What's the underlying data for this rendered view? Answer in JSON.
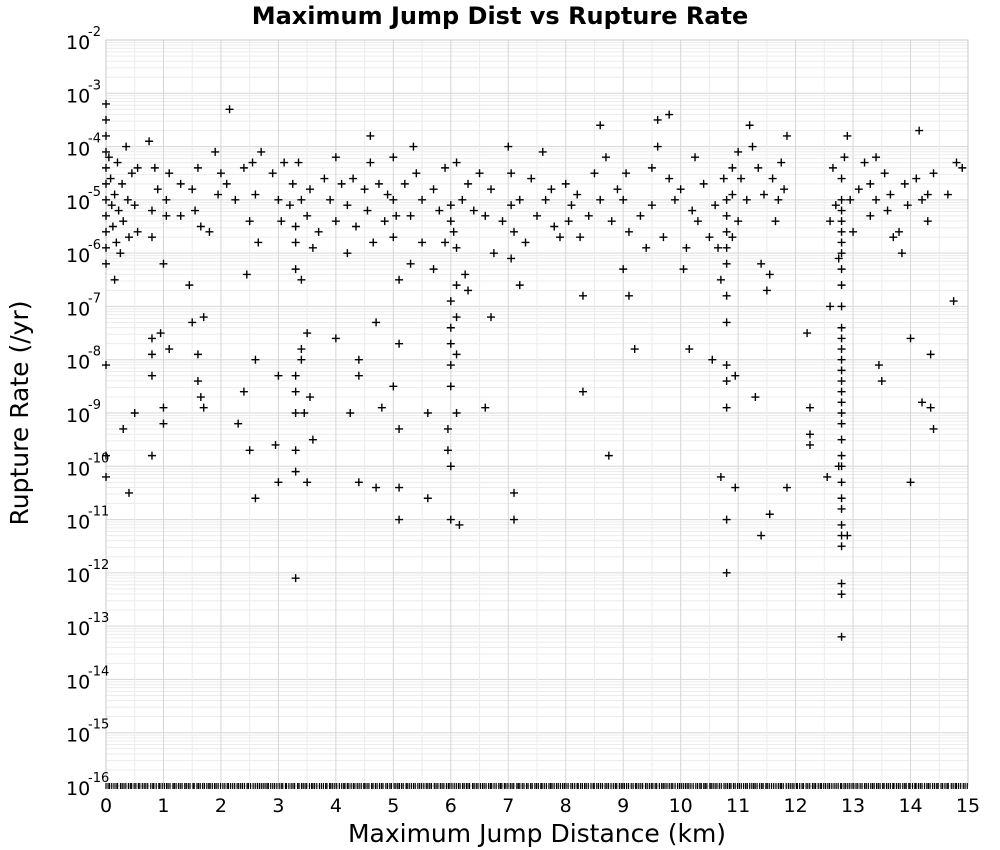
{
  "chart_data": {
    "type": "scatter",
    "title": "Maximum Jump Dist vs Rupture Rate",
    "xlabel": "Maximum Jump Distance (km)",
    "ylabel": "Rupture Rate (/yr)",
    "xlim": [
      0,
      15
    ],
    "ylim_log10": [
      -16,
      -2
    ],
    "yscale": "log",
    "x_ticks": [
      "0",
      "1",
      "2",
      "3",
      "4",
      "5",
      "6",
      "7",
      "8",
      "9",
      "10",
      "11",
      "12",
      "13",
      "14",
      "15"
    ],
    "y_tick_base": "10",
    "y_tick_exponents": [
      "-2",
      "-3",
      "-4",
      "-5",
      "-6",
      "-7",
      "-8",
      "-9",
      "-10",
      "-11",
      "-12",
      "-13",
      "-14",
      "-15",
      "-16"
    ],
    "grid": true,
    "legend": "none",
    "marker": "+",
    "marker_color": "#000000",
    "points_log10": [
      [
        0.0,
        -3.2
      ],
      [
        0.0,
        -3.5
      ],
      [
        0.0,
        -3.8
      ],
      [
        0.0,
        -4.1
      ],
      [
        0.0,
        -4.4
      ],
      [
        0.0,
        -4.7
      ],
      [
        0.0,
        -5.0
      ],
      [
        0.0,
        -5.3
      ],
      [
        0.0,
        -5.6
      ],
      [
        0.0,
        -5.9
      ],
      [
        0.0,
        -6.2
      ],
      [
        0.0,
        -8.1
      ],
      [
        0.0,
        -9.8
      ],
      [
        0.0,
        -10.2
      ],
      [
        0.05,
        -4.2
      ],
      [
        0.08,
        -4.6
      ],
      [
        0.1,
        -5.1
      ],
      [
        0.12,
        -5.5
      ],
      [
        0.15,
        -4.9
      ],
      [
        0.15,
        -6.5
      ],
      [
        0.18,
        -5.8
      ],
      [
        0.2,
        -4.3
      ],
      [
        0.22,
        -5.2
      ],
      [
        0.25,
        -6.0
      ],
      [
        0.28,
        -4.7
      ],
      [
        0.3,
        -9.3
      ],
      [
        0.3,
        -5.4
      ],
      [
        0.35,
        -4.0
      ],
      [
        0.38,
        -5.0
      ],
      [
        0.4,
        -5.7
      ],
      [
        0.4,
        -10.5
      ],
      [
        0.45,
        -4.5
      ],
      [
        0.5,
        -5.1
      ],
      [
        0.5,
        -9.0
      ],
      [
        0.55,
        -4.4
      ],
      [
        0.55,
        -5.6
      ],
      [
        0.75,
        -3.9
      ],
      [
        0.8,
        -5.2
      ],
      [
        0.8,
        -5.7
      ],
      [
        0.8,
        -7.6
      ],
      [
        0.8,
        -7.9
      ],
      [
        0.8,
        -8.3
      ],
      [
        0.8,
        -9.8
      ],
      [
        0.85,
        -4.4
      ],
      [
        0.9,
        -4.8
      ],
      [
        0.95,
        -7.5
      ],
      [
        1.0,
        -6.2
      ],
      [
        1.0,
        -8.9
      ],
      [
        1.0,
        -9.2
      ],
      [
        1.05,
        -5.0
      ],
      [
        1.05,
        -5.3
      ],
      [
        1.1,
        -4.5
      ],
      [
        1.1,
        -7.8
      ],
      [
        1.3,
        -5.3
      ],
      [
        1.3,
        -4.7
      ],
      [
        1.45,
        -6.6
      ],
      [
        1.5,
        -7.3
      ],
      [
        1.5,
        -4.8
      ],
      [
        1.55,
        -5.2
      ],
      [
        1.6,
        -4.4
      ],
      [
        1.6,
        -7.9
      ],
      [
        1.6,
        -8.4
      ],
      [
        1.65,
        -5.5
      ],
      [
        1.65,
        -8.7
      ],
      [
        1.7,
        -7.2
      ],
      [
        1.7,
        -8.9
      ],
      [
        1.8,
        -5.6
      ],
      [
        1.9,
        -4.1
      ],
      [
        1.95,
        -4.9
      ],
      [
        2.0,
        -4.5
      ],
      [
        2.1,
        -4.7
      ],
      [
        2.15,
        -3.3
      ],
      [
        2.25,
        -5.0
      ],
      [
        2.3,
        -9.2
      ],
      [
        2.4,
        -4.4
      ],
      [
        2.4,
        -8.6
      ],
      [
        2.45,
        -6.4
      ],
      [
        2.5,
        -5.4
      ],
      [
        2.5,
        -9.7
      ],
      [
        2.55,
        -4.3
      ],
      [
        2.6,
        -4.9
      ],
      [
        2.6,
        -8.0
      ],
      [
        2.6,
        -10.6
      ],
      [
        2.65,
        -5.8
      ],
      [
        2.7,
        -4.1
      ],
      [
        2.9,
        -4.5
      ],
      [
        2.95,
        -9.6
      ],
      [
        3.0,
        -5.0
      ],
      [
        3.0,
        -8.3
      ],
      [
        3.0,
        -10.3
      ],
      [
        3.05,
        -5.4
      ],
      [
        3.1,
        -4.3
      ],
      [
        3.2,
        -5.1
      ],
      [
        3.25,
        -4.7
      ],
      [
        3.3,
        -5.5
      ],
      [
        3.3,
        -5.8
      ],
      [
        3.3,
        -6.3
      ],
      [
        3.3,
        -8.3
      ],
      [
        3.3,
        -8.6
      ],
      [
        3.3,
        -9.0
      ],
      [
        3.3,
        -9.7
      ],
      [
        3.3,
        -10.1
      ],
      [
        3.3,
        -12.1
      ],
      [
        3.35,
        -4.3
      ],
      [
        3.4,
        -5.0
      ],
      [
        3.4,
        -6.5
      ],
      [
        3.4,
        -7.8
      ],
      [
        3.4,
        -8.0
      ],
      [
        3.45,
        -9.0
      ],
      [
        3.5,
        -5.3
      ],
      [
        3.5,
        -7.5
      ],
      [
        3.5,
        -10.3
      ],
      [
        3.55,
        -4.8
      ],
      [
        3.55,
        -8.7
      ],
      [
        3.6,
        -5.9
      ],
      [
        3.6,
        -9.5
      ],
      [
        3.7,
        -5.6
      ],
      [
        3.8,
        -4.6
      ],
      [
        3.9,
        -5.0
      ],
      [
        4.0,
        -4.2
      ],
      [
        4.0,
        -5.4
      ],
      [
        4.0,
        -7.6
      ],
      [
        4.1,
        -4.7
      ],
      [
        4.2,
        -5.1
      ],
      [
        4.2,
        -6.0
      ],
      [
        4.25,
        -9.0
      ],
      [
        4.3,
        -4.6
      ],
      [
        4.35,
        -5.5
      ],
      [
        4.4,
        -8.0
      ],
      [
        4.4,
        -8.3
      ],
      [
        4.4,
        -10.3
      ],
      [
        4.5,
        -4.8
      ],
      [
        4.55,
        -5.2
      ],
      [
        4.6,
        -3.8
      ],
      [
        4.6,
        -4.3
      ],
      [
        4.65,
        -5.8
      ],
      [
        4.7,
        -7.3
      ],
      [
        4.7,
        -10.4
      ],
      [
        4.75,
        -4.7
      ],
      [
        4.8,
        -8.9
      ],
      [
        4.85,
        -5.4
      ],
      [
        4.9,
        -4.9
      ],
      [
        5.0,
        -4.2
      ],
      [
        5.0,
        -5.0
      ],
      [
        5.0,
        -5.7
      ],
      [
        5.0,
        -8.5
      ],
      [
        5.05,
        -5.3
      ],
      [
        5.1,
        -6.5
      ],
      [
        5.1,
        -9.3
      ],
      [
        5.1,
        -7.7
      ],
      [
        5.1,
        -10.4
      ],
      [
        5.1,
        -11.0
      ],
      [
        5.2,
        -4.7
      ],
      [
        5.3,
        -5.3
      ],
      [
        5.3,
        -6.2
      ],
      [
        5.35,
        -4.0
      ],
      [
        5.4,
        -4.5
      ],
      [
        5.5,
        -5.0
      ],
      [
        5.5,
        -5.8
      ],
      [
        5.6,
        -9.0
      ],
      [
        5.6,
        -10.6
      ],
      [
        5.7,
        -4.8
      ],
      [
        5.7,
        -6.3
      ],
      [
        5.8,
        -5.2
      ],
      [
        5.9,
        -4.4
      ],
      [
        5.9,
        -5.8
      ],
      [
        5.95,
        -9.3
      ],
      [
        5.95,
        -9.7
      ],
      [
        6.0,
        -5.1
      ],
      [
        6.0,
        -5.4
      ],
      [
        6.0,
        -6.9
      ],
      [
        6.0,
        -7.4
      ],
      [
        6.0,
        -7.7
      ],
      [
        6.0,
        -8.1
      ],
      [
        6.0,
        -8.5
      ],
      [
        6.0,
        -10.0
      ],
      [
        6.0,
        -11.0
      ],
      [
        6.05,
        -5.6
      ],
      [
        6.1,
        -4.3
      ],
      [
        6.1,
        -5.9
      ],
      [
        6.1,
        -6.6
      ],
      [
        6.1,
        -7.2
      ],
      [
        6.1,
        -7.9
      ],
      [
        6.1,
        -9.0
      ],
      [
        6.15,
        -11.1
      ],
      [
        6.2,
        -5.0
      ],
      [
        6.25,
        -6.4
      ],
      [
        6.3,
        -4.7
      ],
      [
        6.3,
        -6.7
      ],
      [
        6.4,
        -5.2
      ],
      [
        6.5,
        -4.5
      ],
      [
        6.6,
        -5.3
      ],
      [
        6.6,
        -8.9
      ],
      [
        6.7,
        -4.8
      ],
      [
        6.7,
        -7.2
      ],
      [
        6.75,
        -6.0
      ],
      [
        6.9,
        -5.4
      ],
      [
        7.0,
        -4.0
      ],
      [
        7.05,
        -4.5
      ],
      [
        7.05,
        -5.1
      ],
      [
        7.05,
        -6.1
      ],
      [
        7.1,
        -5.6
      ],
      [
        7.1,
        -10.5
      ],
      [
        7.1,
        -11.0
      ],
      [
        7.2,
        -5.0
      ],
      [
        7.2,
        -6.6
      ],
      [
        7.3,
        -5.8
      ],
      [
        7.4,
        -4.6
      ],
      [
        7.5,
        -5.3
      ],
      [
        7.6,
        -4.1
      ],
      [
        7.65,
        -5.0
      ],
      [
        7.75,
        -4.8
      ],
      [
        7.8,
        -5.5
      ],
      [
        7.9,
        -5.7
      ],
      [
        8.0,
        -4.7
      ],
      [
        8.05,
        -5.4
      ],
      [
        8.1,
        -5.1
      ],
      [
        8.2,
        -4.9
      ],
      [
        8.25,
        -5.7
      ],
      [
        8.3,
        -6.8
      ],
      [
        8.3,
        -8.6
      ],
      [
        8.4,
        -5.3
      ],
      [
        8.5,
        -4.5
      ],
      [
        8.6,
        -3.6
      ],
      [
        8.6,
        -5.0
      ],
      [
        8.7,
        -4.2
      ],
      [
        8.75,
        -9.8
      ],
      [
        8.8,
        -5.4
      ],
      [
        8.9,
        -4.8
      ],
      [
        9.0,
        -5.0
      ],
      [
        9.0,
        -6.3
      ],
      [
        9.05,
        -4.5
      ],
      [
        9.1,
        -5.6
      ],
      [
        9.1,
        -6.8
      ],
      [
        9.2,
        -7.8
      ],
      [
        9.3,
        -5.3
      ],
      [
        9.4,
        -5.9
      ],
      [
        9.5,
        -5.1
      ],
      [
        9.5,
        -4.4
      ],
      [
        9.6,
        -3.5
      ],
      [
        9.6,
        -4.0
      ],
      [
        9.7,
        -5.7
      ],
      [
        9.8,
        -3.4
      ],
      [
        9.8,
        -4.6
      ],
      [
        9.9,
        -5.0
      ],
      [
        10.0,
        -4.8
      ],
      [
        10.05,
        -6.3
      ],
      [
        10.1,
        -5.9
      ],
      [
        10.15,
        -7.8
      ],
      [
        10.2,
        -5.2
      ],
      [
        10.25,
        -4.2
      ],
      [
        10.3,
        -5.4
      ],
      [
        10.4,
        -4.7
      ],
      [
        10.5,
        -5.7
      ],
      [
        10.55,
        -8.0
      ],
      [
        10.6,
        -5.1
      ],
      [
        10.65,
        -5.9
      ],
      [
        10.7,
        -10.2
      ],
      [
        10.7,
        -6.5
      ],
      [
        10.75,
        -4.6
      ],
      [
        10.8,
        -5.0
      ],
      [
        10.8,
        -5.3
      ],
      [
        10.8,
        -5.6
      ],
      [
        10.8,
        -5.9
      ],
      [
        10.8,
        -6.2
      ],
      [
        10.8,
        -6.8
      ],
      [
        10.8,
        -7.3
      ],
      [
        10.8,
        -8.1
      ],
      [
        10.8,
        -8.4
      ],
      [
        10.8,
        -8.9
      ],
      [
        10.8,
        -11.0
      ],
      [
        10.8,
        -12.0
      ],
      [
        10.9,
        -4.4
      ],
      [
        10.9,
        -4.9
      ],
      [
        10.9,
        -5.7
      ],
      [
        10.95,
        -10.4
      ],
      [
        10.95,
        -8.3
      ],
      [
        11.0,
        -4.1
      ],
      [
        11.0,
        -5.4
      ],
      [
        11.05,
        -4.6
      ],
      [
        11.15,
        -5.0
      ],
      [
        11.2,
        -3.6
      ],
      [
        11.25,
        -4.0
      ],
      [
        11.3,
        -8.7
      ],
      [
        11.35,
        -4.4
      ],
      [
        11.4,
        -6.2
      ],
      [
        11.4,
        -11.3
      ],
      [
        11.45,
        -4.9
      ],
      [
        11.5,
        -6.7
      ],
      [
        11.55,
        -6.4
      ],
      [
        11.55,
        -10.9
      ],
      [
        11.6,
        -4.6
      ],
      [
        11.65,
        -5.4
      ],
      [
        11.7,
        -5.0
      ],
      [
        11.75,
        -4.3
      ],
      [
        11.8,
        -4.8
      ],
      [
        11.85,
        -3.8
      ],
      [
        11.85,
        -10.4
      ],
      [
        12.2,
        -7.5
      ],
      [
        12.25,
        -8.9
      ],
      [
        12.25,
        -9.4
      ],
      [
        12.25,
        -9.6
      ],
      [
        12.55,
        -10.2
      ],
      [
        12.6,
        -7.0
      ],
      [
        12.6,
        -5.4
      ],
      [
        12.65,
        -4.4
      ],
      [
        12.7,
        -5.1
      ],
      [
        12.75,
        -6.1
      ],
      [
        12.75,
        -10.0
      ],
      [
        12.8,
        -4.6
      ],
      [
        12.8,
        -5.0
      ],
      [
        12.8,
        -5.2
      ],
      [
        12.8,
        -5.4
      ],
      [
        12.8,
        -5.6
      ],
      [
        12.8,
        -5.8
      ],
      [
        12.8,
        -6.0
      ],
      [
        12.8,
        -6.3
      ],
      [
        12.8,
        -6.6
      ],
      [
        12.8,
        -7.0
      ],
      [
        12.8,
        -7.4
      ],
      [
        12.8,
        -7.6
      ],
      [
        12.8,
        -7.8
      ],
      [
        12.8,
        -8.0
      ],
      [
        12.8,
        -8.2
      ],
      [
        12.8,
        -8.4
      ],
      [
        12.8,
        -8.6
      ],
      [
        12.8,
        -8.8
      ],
      [
        12.8,
        -9.0
      ],
      [
        12.8,
        -9.2
      ],
      [
        12.8,
        -9.5
      ],
      [
        12.8,
        -9.8
      ],
      [
        12.8,
        -10.0
      ],
      [
        12.8,
        -10.3
      ],
      [
        12.8,
        -10.6
      ],
      [
        12.8,
        -10.8
      ],
      [
        12.8,
        -11.1
      ],
      [
        12.8,
        -11.3
      ],
      [
        12.8,
        -11.5
      ],
      [
        12.8,
        -12.2
      ],
      [
        12.8,
        -12.4
      ],
      [
        12.8,
        -13.2
      ],
      [
        12.85,
        -4.2
      ],
      [
        12.9,
        -3.8
      ],
      [
        12.9,
        -11.3
      ],
      [
        12.95,
        -5.0
      ],
      [
        13.0,
        -5.6
      ],
      [
        13.1,
        -4.8
      ],
      [
        13.2,
        -4.3
      ],
      [
        13.3,
        -4.7
      ],
      [
        13.3,
        -5.3
      ],
      [
        13.4,
        -4.2
      ],
      [
        13.4,
        -5.0
      ],
      [
        13.45,
        -8.1
      ],
      [
        13.5,
        -8.4
      ],
      [
        13.55,
        -4.5
      ],
      [
        13.6,
        -5.2
      ],
      [
        13.65,
        -4.9
      ],
      [
        13.7,
        -5.7
      ],
      [
        13.8,
        -5.6
      ],
      [
        13.85,
        -6.0
      ],
      [
        13.9,
        -4.7
      ],
      [
        13.95,
        -5.1
      ],
      [
        14.0,
        -7.6
      ],
      [
        14.0,
        -10.3
      ],
      [
        14.1,
        -4.6
      ],
      [
        14.15,
        -3.7
      ],
      [
        14.2,
        -5.0
      ],
      [
        14.2,
        -8.8
      ],
      [
        14.3,
        -4.9
      ],
      [
        14.3,
        -5.4
      ],
      [
        14.35,
        -8.9
      ],
      [
        14.35,
        -7.9
      ],
      [
        14.4,
        -9.3
      ],
      [
        14.4,
        -4.5
      ],
      [
        14.65,
        -4.9
      ],
      [
        14.75,
        -6.9
      ],
      [
        14.8,
        -4.3
      ],
      [
        14.9,
        -4.4
      ]
    ],
    "floor_points_note_value": "10^-16"
  }
}
